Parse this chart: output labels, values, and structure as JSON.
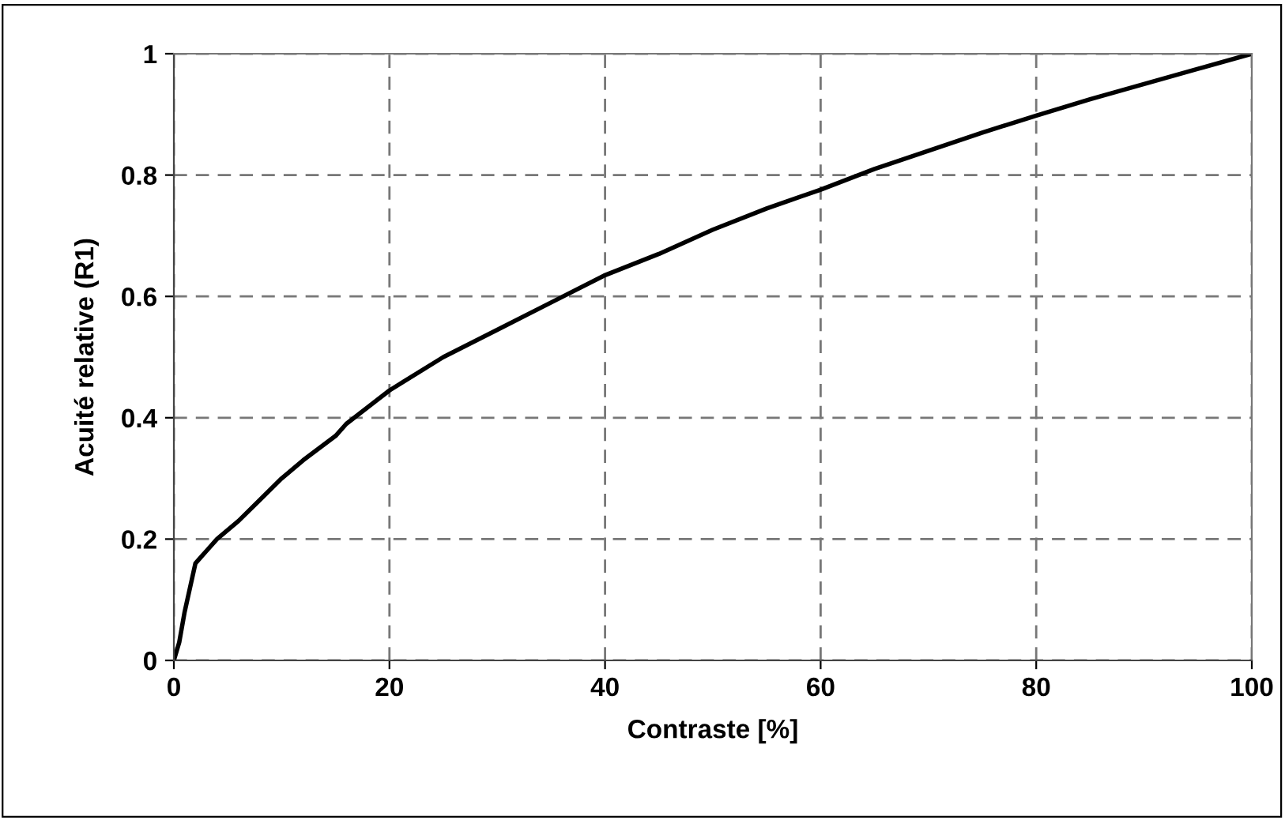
{
  "chart_data": {
    "type": "line",
    "xlabel": "Contraste [%]",
    "ylabel": "Acuité relative (R1)",
    "series": [
      {
        "color": "#000000",
        "x": [
          0,
          0.5,
          1,
          1.5,
          2,
          2.5,
          3,
          4,
          6,
          8,
          10,
          12,
          15,
          16,
          20,
          25,
          30,
          35,
          40,
          45,
          50,
          55,
          60,
          65,
          70,
          75,
          80,
          85,
          90,
          95,
          100
        ],
        "values": [
          0,
          0.03,
          0.08,
          0.12,
          0.16,
          0.17,
          0.18,
          0.2,
          0.23,
          0.265,
          0.3,
          0.33,
          0.37,
          0.39,
          0.445,
          0.5,
          0.545,
          0.59,
          0.635,
          0.67,
          0.71,
          0.745,
          0.776,
          0.81,
          0.84,
          0.87,
          0.898,
          0.925,
          0.95,
          0.975,
          1.0
        ]
      }
    ],
    "xlim": [
      0,
      100
    ],
    "xticks": [
      0,
      20,
      40,
      60,
      80,
      100
    ],
    "ylim": [
      0,
      1
    ],
    "yticks": [
      0,
      0.2,
      0.4,
      0.6,
      0.8,
      1
    ],
    "grid": true,
    "line_style": "solid",
    "marker": "none"
  }
}
